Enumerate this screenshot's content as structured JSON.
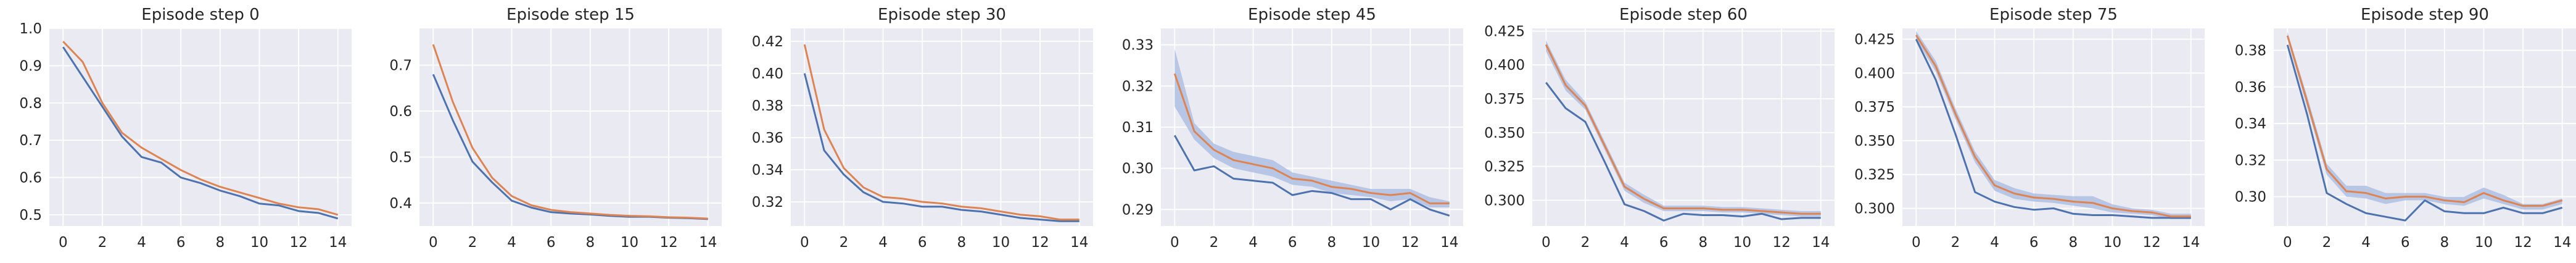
{
  "figure": {
    "background": "#ffffff",
    "axes_background": "#eaeaf2",
    "grid_color": "#ffffff"
  },
  "colors": {
    "blue": "#4c72b0",
    "orange": "#dd8452",
    "band_blue": "#aec0e3",
    "band_orange": "#f0b696"
  },
  "chart_data": [
    {
      "type": "line",
      "title": "Episode step 0",
      "x": [
        0,
        1,
        2,
        3,
        4,
        5,
        6,
        7,
        8,
        9,
        10,
        11,
        12,
        13,
        14
      ],
      "xticks": [
        0,
        2,
        4,
        6,
        8,
        10,
        12,
        14
      ],
      "xlim": [
        -0.7,
        14.7
      ],
      "ylim": [
        0.47,
        1.0
      ],
      "yticks": [
        0.5,
        0.6,
        0.7,
        0.8,
        0.9,
        1.0
      ],
      "ytick_labels": [
        "0.5",
        "0.6",
        "0.7",
        "0.8",
        "0.9",
        "1.0"
      ],
      "grid": true,
      "series": [
        {
          "color": "blue",
          "values": [
            0.95,
            0.87,
            0.79,
            0.71,
            0.655,
            0.64,
            0.6,
            0.585,
            0.565,
            0.55,
            0.53,
            0.525,
            0.51,
            0.505,
            0.49
          ]
        },
        {
          "color": "orange",
          "values": [
            0.965,
            0.91,
            0.8,
            0.72,
            0.68,
            0.65,
            0.62,
            0.595,
            0.575,
            0.56,
            0.545,
            0.53,
            0.52,
            0.515,
            0.5
          ]
        }
      ]
    },
    {
      "type": "line",
      "title": "Episode step 15",
      "x": [
        0,
        1,
        2,
        3,
        4,
        5,
        6,
        7,
        8,
        9,
        10,
        11,
        12,
        13,
        14
      ],
      "xticks": [
        0,
        2,
        4,
        6,
        8,
        10,
        12,
        14
      ],
      "xlim": [
        -0.7,
        14.7
      ],
      "ylim": [
        0.35,
        0.78
      ],
      "yticks": [
        0.4,
        0.5,
        0.6,
        0.7
      ],
      "ytick_labels": [
        "0.4",
        "0.5",
        "0.6",
        "0.7"
      ],
      "grid": true,
      "series": [
        {
          "color": "blue",
          "values": [
            0.68,
            0.58,
            0.49,
            0.445,
            0.405,
            0.39,
            0.38,
            0.377,
            0.375,
            0.372,
            0.37,
            0.37,
            0.368,
            0.367,
            0.365
          ]
        },
        {
          "color": "orange",
          "values": [
            0.745,
            0.62,
            0.52,
            0.455,
            0.415,
            0.395,
            0.385,
            0.38,
            0.377,
            0.374,
            0.372,
            0.371,
            0.369,
            0.368,
            0.366
          ]
        }
      ]
    },
    {
      "type": "line",
      "title": "Episode step 30",
      "x": [
        0,
        1,
        2,
        3,
        4,
        5,
        6,
        7,
        8,
        9,
        10,
        11,
        12,
        13,
        14
      ],
      "xticks": [
        0,
        2,
        4,
        6,
        8,
        10,
        12,
        14
      ],
      "xlim": [
        -0.7,
        14.7
      ],
      "ylim": [
        0.305,
        0.428
      ],
      "yticks": [
        0.32,
        0.34,
        0.36,
        0.38,
        0.4,
        0.42
      ],
      "ytick_labels": [
        "0.32",
        "0.34",
        "0.36",
        "0.38",
        "0.40",
        "0.42"
      ],
      "grid": true,
      "series": [
        {
          "color": "blue",
          "values": [
            0.4,
            0.352,
            0.337,
            0.326,
            0.32,
            0.319,
            0.317,
            0.317,
            0.315,
            0.314,
            0.312,
            0.31,
            0.309,
            0.308,
            0.308
          ]
        },
        {
          "color": "orange",
          "values": [
            0.418,
            0.365,
            0.341,
            0.329,
            0.323,
            0.322,
            0.32,
            0.319,
            0.317,
            0.316,
            0.314,
            0.312,
            0.311,
            0.309,
            0.309
          ]
        }
      ]
    },
    {
      "type": "line",
      "title": "Episode step 45",
      "x": [
        0,
        1,
        2,
        3,
        4,
        5,
        6,
        7,
        8,
        9,
        10,
        11,
        12,
        13,
        14
      ],
      "xticks": [
        0,
        2,
        4,
        6,
        8,
        10,
        12,
        14
      ],
      "xlim": [
        -0.7,
        14.7
      ],
      "ylim": [
        0.286,
        0.334
      ],
      "yticks": [
        0.29,
        0.3,
        0.31,
        0.32,
        0.33
      ],
      "ytick_labels": [
        "0.29",
        "0.30",
        "0.31",
        "0.32",
        "0.33"
      ],
      "grid": true,
      "series": [
        {
          "color": "blue",
          "values": [
            0.308,
            0.2995,
            0.3005,
            0.2975,
            0.297,
            0.2965,
            0.2935,
            0.2945,
            0.294,
            0.2925,
            0.2925,
            0.29,
            0.2925,
            0.29,
            0.2885
          ]
        },
        {
          "color": "orange",
          "values": [
            0.323,
            0.309,
            0.3045,
            0.302,
            0.301,
            0.3,
            0.2975,
            0.297,
            0.2955,
            0.295,
            0.294,
            0.2935,
            0.294,
            0.2915,
            0.2915
          ],
          "band": {
            "color": "band_blue",
            "upper": [
              0.329,
              0.311,
              0.306,
              0.304,
              0.303,
              0.302,
              0.299,
              0.298,
              0.297,
              0.296,
              0.295,
              0.295,
              0.295,
              0.293,
              0.292
            ],
            "lower": [
              0.315,
              0.307,
              0.3025,
              0.3,
              0.299,
              0.298,
              0.296,
              0.2955,
              0.294,
              0.2935,
              0.293,
              0.292,
              0.2925,
              0.2905,
              0.2905
            ]
          }
        }
      ]
    },
    {
      "type": "line",
      "title": "Episode step 60",
      "x": [
        0,
        1,
        2,
        3,
        4,
        5,
        6,
        7,
        8,
        9,
        10,
        11,
        12,
        13,
        14
      ],
      "xticks": [
        0,
        2,
        4,
        6,
        8,
        10,
        12,
        14
      ],
      "xlim": [
        -0.7,
        14.7
      ],
      "ylim": [
        0.281,
        0.427
      ],
      "yticks": [
        0.3,
        0.325,
        0.35,
        0.375,
        0.4,
        0.425
      ],
      "ytick_labels": [
        "0.300",
        "0.325",
        "0.350",
        "0.375",
        "0.400",
        "0.425"
      ],
      "grid": true,
      "series": [
        {
          "color": "blue",
          "values": [
            0.387,
            0.368,
            0.358,
            0.328,
            0.297,
            0.292,
            0.285,
            0.29,
            0.289,
            0.289,
            0.288,
            0.29,
            0.286,
            0.287,
            0.287
          ]
        },
        {
          "color": "orange",
          "values": [
            0.415,
            0.385,
            0.37,
            0.34,
            0.31,
            0.301,
            0.294,
            0.294,
            0.294,
            0.293,
            0.293,
            0.292,
            0.291,
            0.29,
            0.29
          ],
          "band": {
            "color": "band_blue",
            "upper": [
              0.418,
              0.389,
              0.373,
              0.343,
              0.313,
              0.304,
              0.296,
              0.296,
              0.296,
              0.295,
              0.295,
              0.294,
              0.293,
              0.292,
              0.292
            ],
            "lower": [
              0.41,
              0.381,
              0.367,
              0.337,
              0.307,
              0.298,
              0.292,
              0.292,
              0.292,
              0.291,
              0.291,
              0.29,
              0.289,
              0.288,
              0.288
            ]
          }
        }
      ]
    },
    {
      "type": "line",
      "title": "Episode step 75",
      "x": [
        0,
        1,
        2,
        3,
        4,
        5,
        6,
        7,
        8,
        9,
        10,
        11,
        12,
        13,
        14
      ],
      "xticks": [
        0,
        2,
        4,
        6,
        8,
        10,
        12,
        14
      ],
      "xlim": [
        -0.7,
        14.7
      ],
      "ylim": [
        0.287,
        0.433
      ],
      "yticks": [
        0.3,
        0.325,
        0.35,
        0.375,
        0.4,
        0.425
      ],
      "ytick_labels": [
        "0.300",
        "0.325",
        "0.350",
        "0.375",
        "0.400",
        "0.425"
      ],
      "grid": true,
      "series": [
        {
          "color": "blue",
          "values": [
            0.425,
            0.395,
            0.355,
            0.312,
            0.305,
            0.301,
            0.299,
            0.3,
            0.296,
            0.295,
            0.295,
            0.294,
            0.293,
            0.293,
            0.293
          ]
        },
        {
          "color": "orange",
          "values": [
            0.428,
            0.405,
            0.37,
            0.338,
            0.317,
            0.311,
            0.308,
            0.307,
            0.305,
            0.304,
            0.3,
            0.298,
            0.297,
            0.294,
            0.294
          ],
          "band": {
            "color": "band_blue",
            "upper": [
              0.431,
              0.409,
              0.374,
              0.342,
              0.321,
              0.315,
              0.311,
              0.31,
              0.309,
              0.309,
              0.303,
              0.3,
              0.299,
              0.296,
              0.296
            ],
            "lower": [
              0.425,
              0.401,
              0.366,
              0.334,
              0.313,
              0.307,
              0.305,
              0.304,
              0.302,
              0.3,
              0.297,
              0.296,
              0.295,
              0.292,
              0.292
            ]
          }
        }
      ]
    },
    {
      "type": "line",
      "title": "Episode step 90",
      "x": [
        0,
        1,
        2,
        3,
        4,
        5,
        6,
        7,
        8,
        9,
        10,
        11,
        12,
        13,
        14
      ],
      "xticks": [
        0,
        2,
        4,
        6,
        8,
        10,
        12,
        14
      ],
      "xlim": [
        -0.7,
        14.7
      ],
      "ylim": [
        0.284,
        0.392
      ],
      "yticks": [
        0.3,
        0.32,
        0.34,
        0.36,
        0.38
      ],
      "ytick_labels": [
        "0.30",
        "0.32",
        "0.34",
        "0.36",
        "0.38"
      ],
      "grid": true,
      "series": [
        {
          "color": "blue",
          "values": [
            0.383,
            0.345,
            0.302,
            0.296,
            0.291,
            0.289,
            0.287,
            0.298,
            0.292,
            0.291,
            0.291,
            0.294,
            0.291,
            0.291,
            0.294
          ]
        },
        {
          "color": "orange",
          "values": [
            0.388,
            0.352,
            0.315,
            0.303,
            0.302,
            0.299,
            0.3,
            0.3,
            0.298,
            0.297,
            0.302,
            0.298,
            0.295,
            0.295,
            0.298
          ],
          "band": {
            "color": "band_blue",
            "upper": [
              0.39,
              0.355,
              0.318,
              0.306,
              0.306,
              0.302,
              0.302,
              0.302,
              0.3,
              0.3,
              0.305,
              0.301,
              0.296,
              0.296,
              0.299
            ],
            "lower": [
              0.386,
              0.349,
              0.312,
              0.3,
              0.299,
              0.296,
              0.298,
              0.298,
              0.296,
              0.295,
              0.299,
              0.296,
              0.293,
              0.293,
              0.296
            ]
          }
        }
      ]
    }
  ]
}
